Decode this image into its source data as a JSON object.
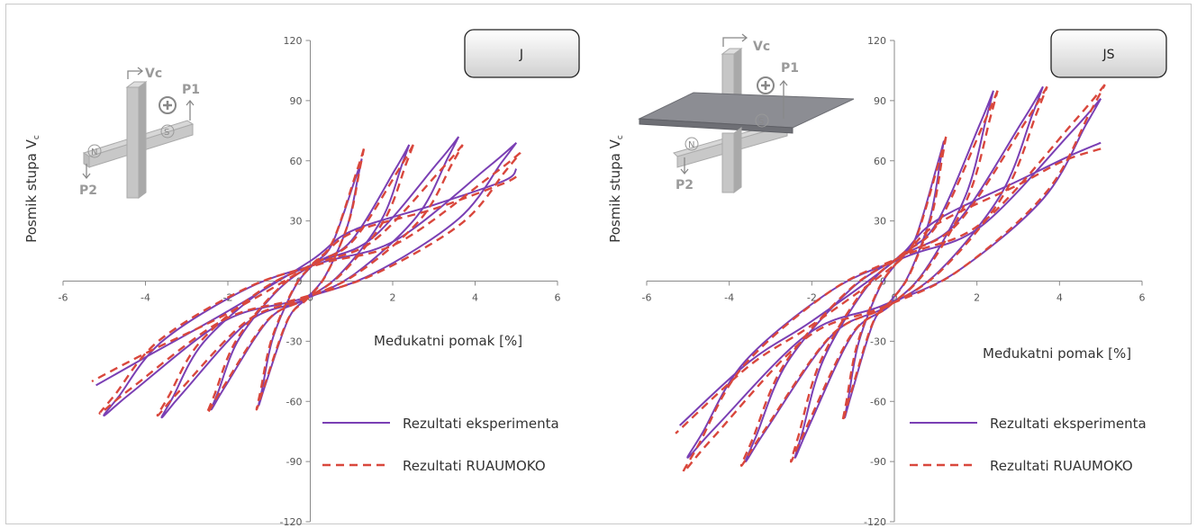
{
  "chart_data": [
    {
      "type": "line",
      "panel_label": "J",
      "ylabel": "Posmik stupa V",
      "ylabel_sub": "c",
      "xlabel": "Međukatni pomak  [%]",
      "xlim": [
        -6,
        6
      ],
      "ylim": [
        -120,
        120
      ],
      "xticks": [
        -6,
        -4,
        -2,
        0,
        2,
        4,
        6
      ],
      "yticks": [
        -120,
        -90,
        -60,
        -30,
        0,
        30,
        60,
        90,
        120
      ],
      "diagram_labels": {
        "vc": "Vc",
        "p1": "P1",
        "p2": "P2",
        "n": "N",
        "s": "S"
      },
      "series": [
        {
          "name": "Rezultati eksperimenta",
          "color": "#7a3fb4",
          "style": "solid",
          "loops": [
            {
              "amp": 1.25,
              "peak_pos": 61,
              "peak_neg": -62
            },
            {
              "amp": 2.4,
              "peak_pos": 68,
              "peak_neg": -64
            },
            {
              "amp": 3.6,
              "peak_pos": 72,
              "peak_neg": -68
            },
            {
              "amp": 5.0,
              "peak_pos": 69,
              "peak_neg": -67
            }
          ],
          "tail": {
            "x": [
              5.0,
              4.7,
              3.0,
              1.0,
              0.0,
              -2.0,
              -4.0,
              -5.2
            ],
            "y": [
              56,
              50,
              38,
              25,
              10,
              -15,
              -38,
              -52
            ]
          }
        },
        {
          "name": "Rezultati RUAUMOKO",
          "color": "#d9473c",
          "style": "dashed",
          "loops": [
            {
              "amp": 1.3,
              "peak_pos": 66,
              "peak_neg": -64
            },
            {
              "amp": 2.5,
              "peak_pos": 68,
              "peak_neg": -66
            },
            {
              "amp": 3.7,
              "peak_pos": 68,
              "peak_neg": -67
            },
            {
              "amp": 5.1,
              "peak_pos": 64,
              "peak_neg": -66
            }
          ],
          "tail": {
            "x": [
              5.0,
              4.6,
              3.0,
              1.0,
              0.0,
              -2.0,
              -4.0,
              -5.3
            ],
            "y": [
              52,
              48,
              36,
              24,
              8,
              -16,
              -36,
              -50
            ]
          }
        }
      ]
    },
    {
      "type": "line",
      "panel_label": "JS",
      "ylabel": "Posmik stupa V",
      "ylabel_sub": "c",
      "xlabel": "Međukatni pomak  [%]",
      "xlim": [
        -6,
        6
      ],
      "ylim": [
        -120,
        120
      ],
      "xticks": [
        -6,
        -4,
        -2,
        0,
        2,
        4,
        6
      ],
      "yticks": [
        -120,
        -90,
        -60,
        -30,
        0,
        30,
        60,
        90,
        120
      ],
      "diagram_labels": {
        "vc": "Vc",
        "p1": "P1",
        "p2": "P2",
        "n": "N",
        "s": "S"
      },
      "series": [
        {
          "name": "Rezultati eksperimenta",
          "color": "#7a3fb4",
          "style": "solid",
          "loops": [
            {
              "amp": 1.2,
              "peak_pos": 70,
              "peak_neg": -68
            },
            {
              "amp": 2.4,
              "peak_pos": 95,
              "peak_neg": -88
            },
            {
              "amp": 3.6,
              "peak_pos": 97,
              "peak_neg": -90
            },
            {
              "amp": 5.0,
              "peak_pos": 91,
              "peak_neg": -88
            }
          ],
          "tail": {
            "x": [
              5.0,
              4.2,
              3.0,
              1.0,
              0.0,
              -2.0,
              -3.5,
              -5.2
            ],
            "y": [
              69,
              62,
              50,
              30,
              10,
              -20,
              -40,
              -72
            ]
          }
        },
        {
          "name": "Rezultati RUAUMOKO",
          "color": "#d9473c",
          "style": "dashed",
          "loops": [
            {
              "amp": 1.25,
              "peak_pos": 72,
              "peak_neg": -70
            },
            {
              "amp": 2.5,
              "peak_pos": 95,
              "peak_neg": -90
            },
            {
              "amp": 3.7,
              "peak_pos": 97,
              "peak_neg": -92
            },
            {
              "amp": 5.1,
              "peak_pos": 98,
              "peak_neg": -95
            }
          ],
          "tail": {
            "x": [
              5.0,
              4.1,
              3.0,
              1.0,
              0.0,
              -2.0,
              -3.5,
              -5.3
            ],
            "y": [
              66,
              60,
              48,
              28,
              8,
              -22,
              -42,
              -76
            ]
          }
        }
      ]
    }
  ]
}
